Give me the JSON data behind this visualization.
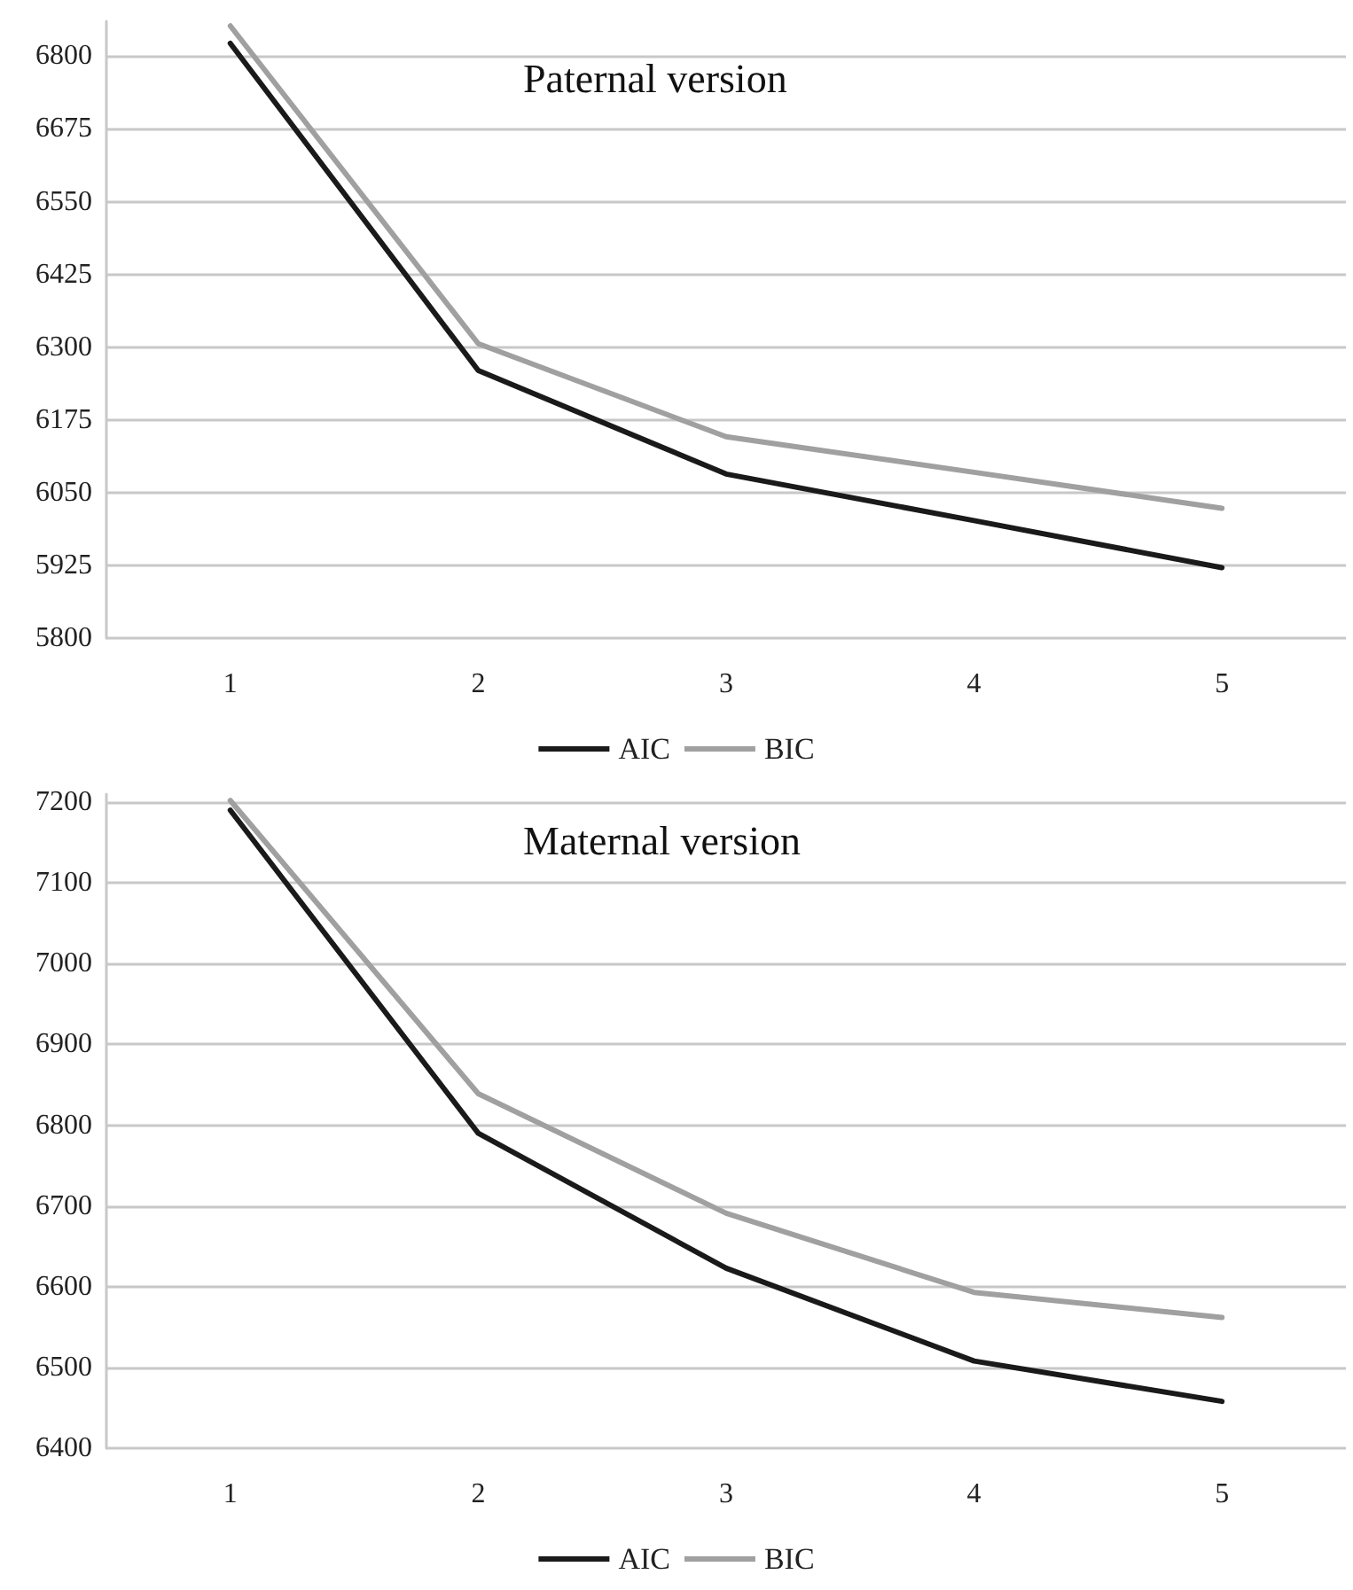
{
  "chart_data": [
    {
      "type": "line",
      "title": "Paternal version",
      "categories": [
        "1",
        "2",
        "3",
        "4",
        "5"
      ],
      "series": [
        {
          "name": "AIC",
          "color": "#1a1a1a",
          "values": [
            6822,
            6260,
            6082,
            6002,
            5921
          ]
        },
        {
          "name": "BIC",
          "color": "#a0a0a0",
          "values": [
            6852,
            6306,
            6146,
            6085,
            6023
          ]
        }
      ],
      "ylim": [
        5800,
        6860
      ],
      "yticks": [
        5800,
        5925,
        6050,
        6175,
        6300,
        6425,
        6550,
        6675,
        6800
      ],
      "grid": "y",
      "legend": "bottom",
      "marker": "none",
      "line_style": "solid"
    },
    {
      "type": "line",
      "title": "Maternal version",
      "categories": [
        "1",
        "2",
        "3",
        "4",
        "5"
      ],
      "series": [
        {
          "name": "AIC",
          "color": "#1a1a1a",
          "values": [
            7190,
            6790,
            6623,
            6508,
            6458
          ]
        },
        {
          "name": "BIC",
          "color": "#a0a0a0",
          "values": [
            7202,
            6839,
            6691,
            6593,
            6562
          ]
        }
      ],
      "ylim": [
        6400,
        7210
      ],
      "yticks": [
        6400,
        6500,
        6600,
        6700,
        6800,
        6900,
        7000,
        7100,
        7200
      ],
      "grid": "y",
      "legend": "bottom",
      "marker": "none",
      "line_style": "solid"
    }
  ]
}
